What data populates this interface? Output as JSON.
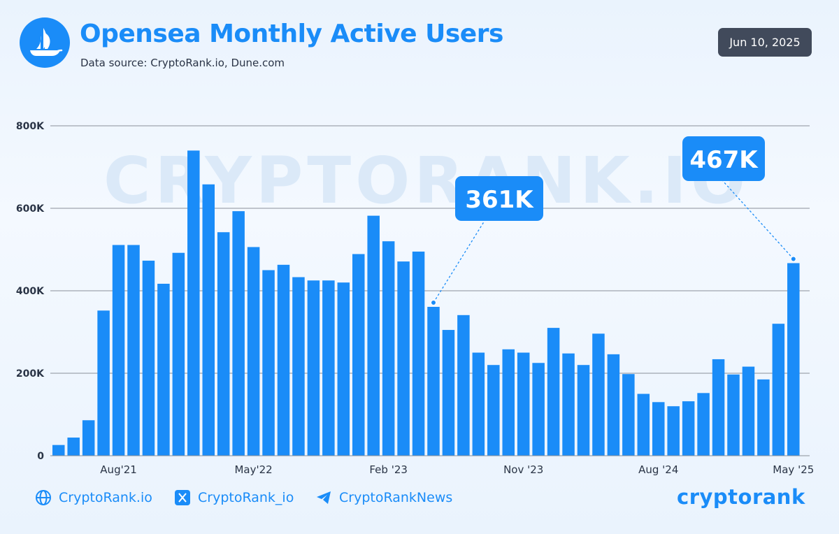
{
  "header": {
    "title": "Opensea Monthly Active Users",
    "subtitle": "Data source: CryptoRank.io, Dune.com",
    "date": "Jun 10, 2025"
  },
  "watermark": "CRYPTORANK.IO",
  "colors": {
    "accent": "#1a8cf8",
    "badge_bg": "#414a5b",
    "grid": "#8a9099"
  },
  "chart_data": {
    "type": "bar",
    "title": "Opensea Monthly Active Users",
    "xlabel": "",
    "ylabel": "",
    "ylim": [
      0,
      800000
    ],
    "y_ticks": [
      0,
      200000,
      400000,
      600000,
      800000
    ],
    "y_tick_labels": [
      "0",
      "200K",
      "400K",
      "600K",
      "800K"
    ],
    "x_tick_labels": [
      {
        "index": 4,
        "label": "Aug'21"
      },
      {
        "index": 13,
        "label": "May'22"
      },
      {
        "index": 22,
        "label": "Feb '23"
      },
      {
        "index": 31,
        "label": "Nov '23"
      },
      {
        "index": 40,
        "label": "Aug '24"
      },
      {
        "index": 49,
        "label": "May '25"
      }
    ],
    "grid": true,
    "categories": [
      "Apr 2021",
      "May 2021",
      "Jun 2021",
      "Jul 2021",
      "Aug 2021",
      "Sep 2021",
      "Oct 2021",
      "Nov 2021",
      "Dec 2021",
      "Jan 2022",
      "Feb 2022",
      "Mar 2022",
      "Apr 2022",
      "May 2022",
      "Jun 2022",
      "Jul 2022",
      "Aug 2022",
      "Sep 2022",
      "Oct 2022",
      "Nov 2022",
      "Dec 2022",
      "Jan 2023",
      "Feb 2023",
      "Mar 2023",
      "Apr 2023",
      "May 2023",
      "Jun 2023",
      "Jul 2023",
      "Aug 2023",
      "Sep 2023",
      "Oct 2023",
      "Nov 2023",
      "Dec 2023",
      "Jan 2024",
      "Feb 2024",
      "Mar 2024",
      "Apr 2024",
      "May 2024",
      "Jun 2024",
      "Jul 2024",
      "Aug 2024",
      "Sep 2024",
      "Oct 2024",
      "Nov 2024",
      "Dec 2024",
      "Jan 2025",
      "Feb 2025",
      "Mar 2025",
      "Apr 2025",
      "May 2025"
    ],
    "values": [
      26000,
      44000,
      86000,
      352000,
      511000,
      511000,
      473000,
      417000,
      492000,
      740000,
      658000,
      542000,
      593000,
      506000,
      450000,
      463000,
      433000,
      425000,
      425000,
      420000,
      489000,
      582000,
      520000,
      471000,
      495000,
      361000,
      305000,
      341000,
      250000,
      220000,
      258000,
      250000,
      225000,
      310000,
      248000,
      220000,
      296000,
      246000,
      198000,
      150000,
      130000,
      120000,
      132000,
      152000,
      234000,
      197000,
      216000,
      185000,
      320000,
      467000
    ],
    "annotations": [
      {
        "index": 25,
        "label": "361K"
      },
      {
        "index": 49,
        "label": "467K"
      }
    ]
  },
  "footer": {
    "links": [
      {
        "icon": "globe-icon",
        "label": "CryptoRank.io"
      },
      {
        "icon": "x-icon",
        "label": "CryptoRank_io"
      },
      {
        "icon": "telegram-icon",
        "label": "CryptoRankNews"
      }
    ],
    "brand": "cryptorank"
  }
}
